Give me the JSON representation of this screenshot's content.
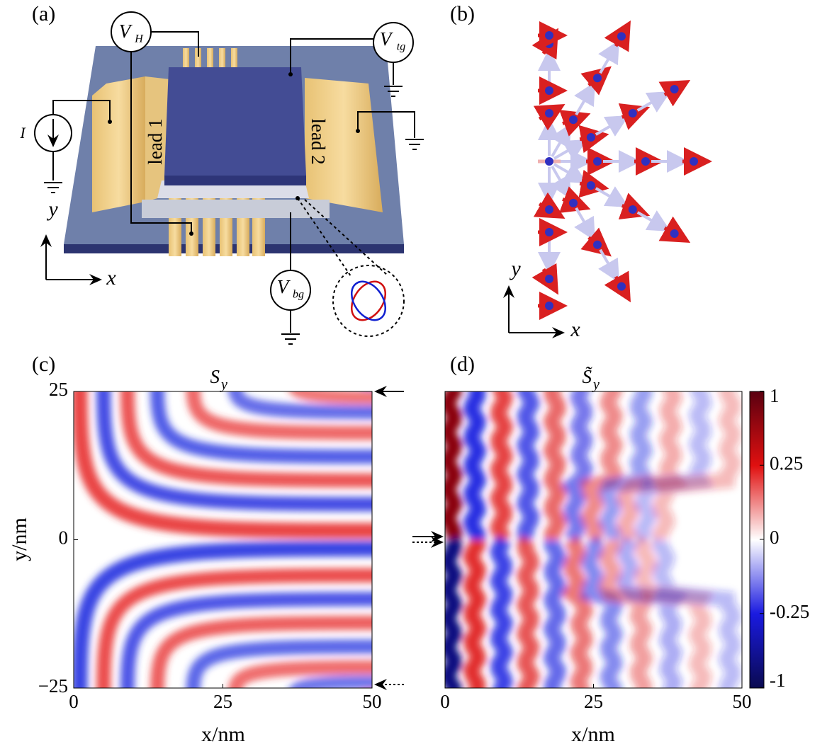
{
  "panel_a": {
    "label": "(a)",
    "voltmeters": [
      {
        "symbol": "V",
        "subscript": "H"
      },
      {
        "symbol": "V",
        "subscript": "tg"
      },
      {
        "symbol": "V",
        "subscript": "bg"
      }
    ],
    "current": "I",
    "leads": [
      "lead 1",
      "lead 2"
    ],
    "axes": [
      "y",
      "x"
    ]
  },
  "panel_b": {
    "label": "(b)",
    "axes": [
      "y",
      "x"
    ]
  },
  "chart_data": [
    {
      "type": "heatmap",
      "panel_label": "(c)",
      "title": {
        "symbol": "S",
        "subscript": "y"
      },
      "xlabel": "x/nm",
      "ylabel": "y/nm",
      "xlim": [
        0,
        50
      ],
      "ylim": [
        -25,
        25
      ],
      "xticks": [
        0,
        25,
        50
      ],
      "yticks": [
        {
          "value": -25,
          "label": "−25"
        },
        0,
        25
      ]
    },
    {
      "type": "heatmap",
      "panel_label": "(d)",
      "title": {
        "symbol": "S̃",
        "subscript": "y"
      },
      "xlabel": "x/nm",
      "xlim": [
        0,
        50
      ],
      "ylim": [
        -25,
        25
      ],
      "xticks": [
        0,
        25,
        50
      ],
      "colorbar": {
        "lim": [
          -1,
          1
        ],
        "ticks": [
          -1,
          -0.25,
          0,
          0.25,
          1
        ],
        "scale": "sqrt"
      }
    }
  ]
}
